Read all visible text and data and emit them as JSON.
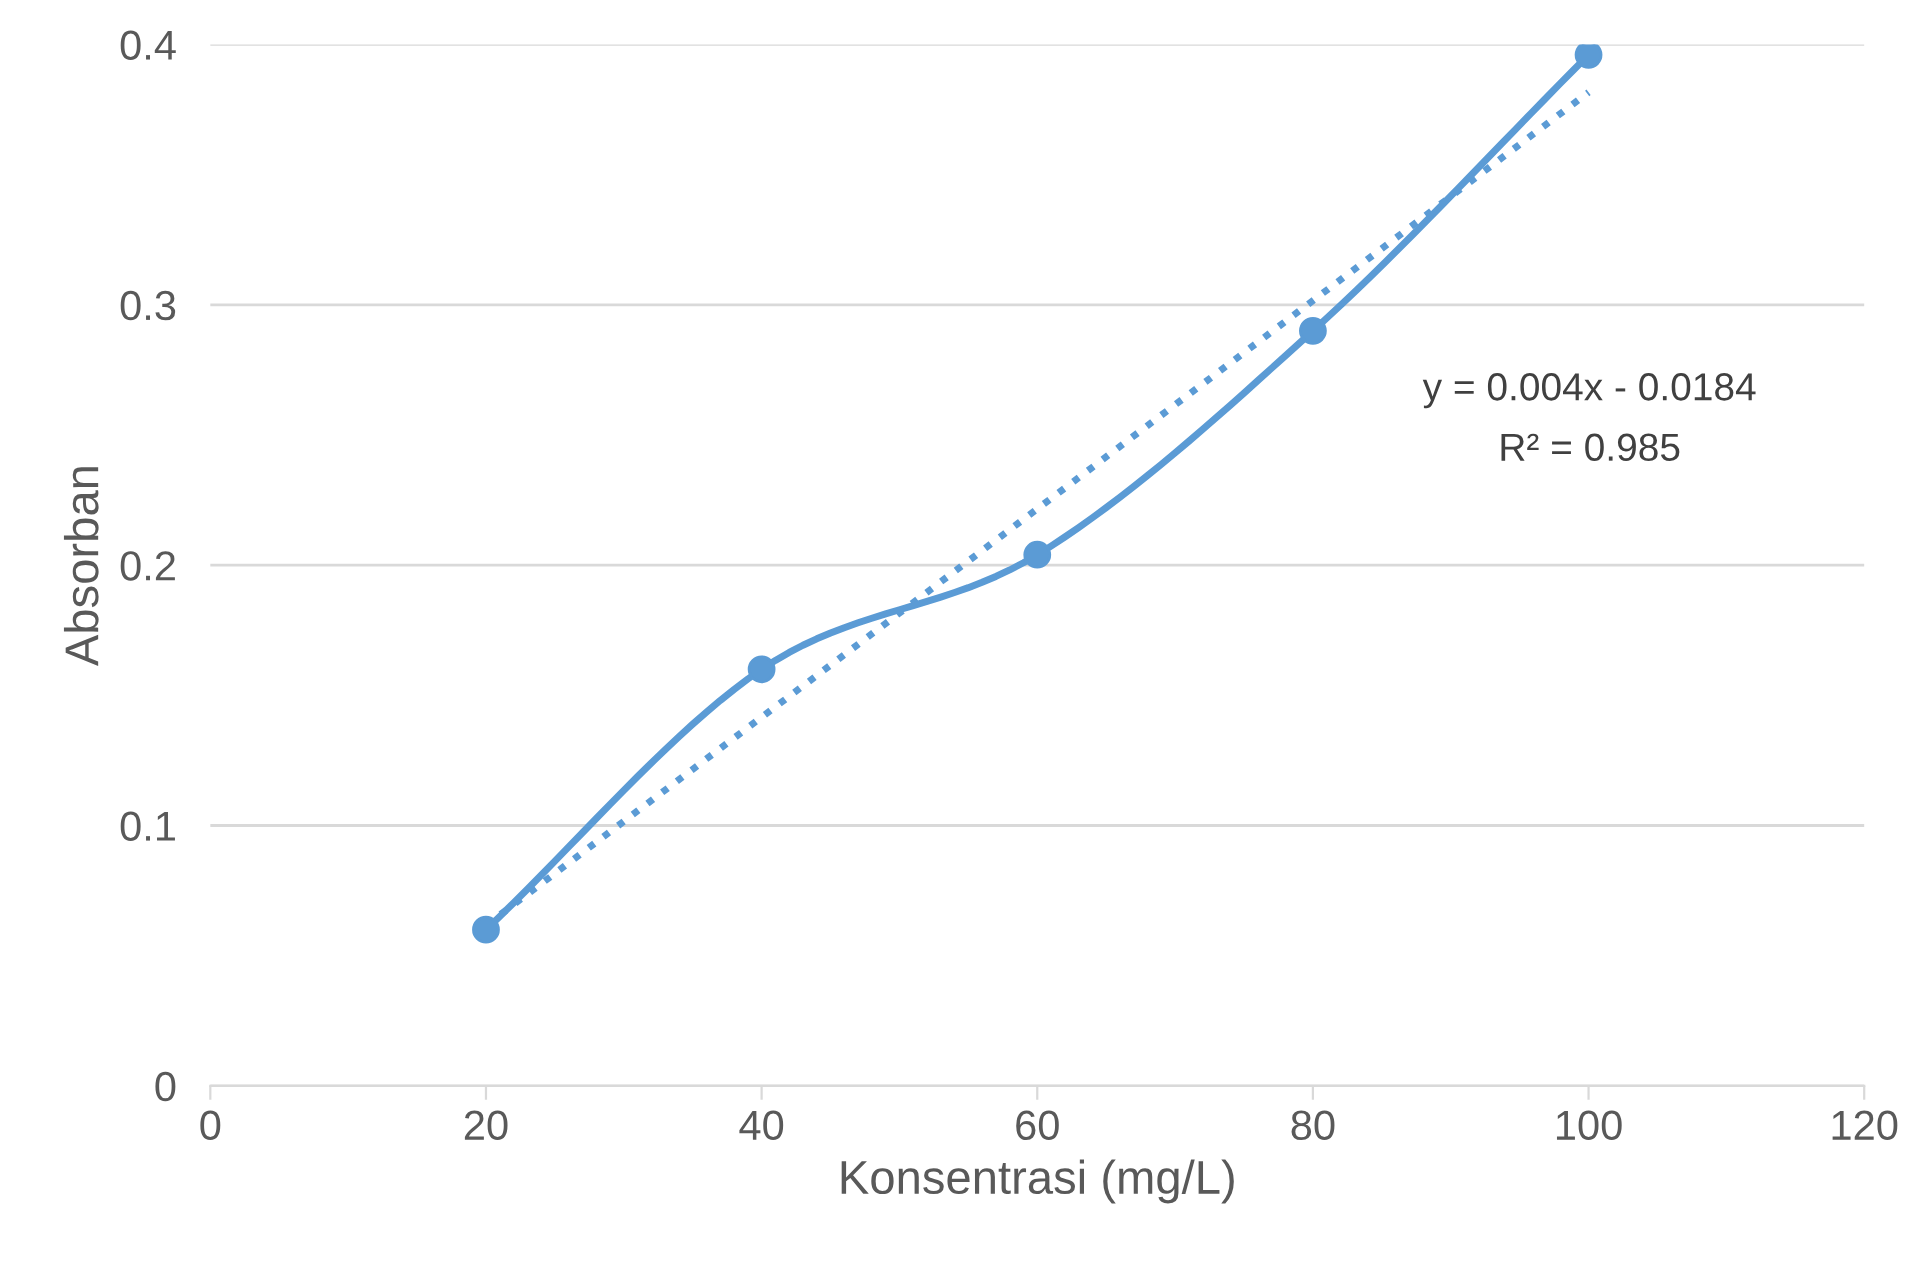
{
  "chart_data": {
    "type": "line",
    "xlabel": "Konsentrasi (mg/L)",
    "ylabel": "Absorban",
    "x": [
      20,
      40,
      60,
      80,
      100
    ],
    "series": [
      {
        "color": "#5b9bd5",
        "marker": "circle",
        "line_style": "solid",
        "values": [
          0.06,
          0.16,
          0.204,
          0.29,
          0.396
        ]
      },
      {
        "color": "#5b9bd5",
        "marker": "none",
        "line_style": "dotted",
        "x": [
          20,
          100
        ],
        "values": [
          0.0616,
          0.3816
        ]
      }
    ],
    "annotations": [
      "y = 0.004x - 0.0184",
      "R² = 0.985"
    ],
    "xlim": [
      0,
      120
    ],
    "xticks": [
      0,
      20,
      40,
      60,
      80,
      100,
      120
    ],
    "ylim": [
      0,
      0.4
    ],
    "yticks": [
      0,
      0.1,
      0.2,
      0.3,
      0.4
    ],
    "grid": "y",
    "legend": false
  }
}
